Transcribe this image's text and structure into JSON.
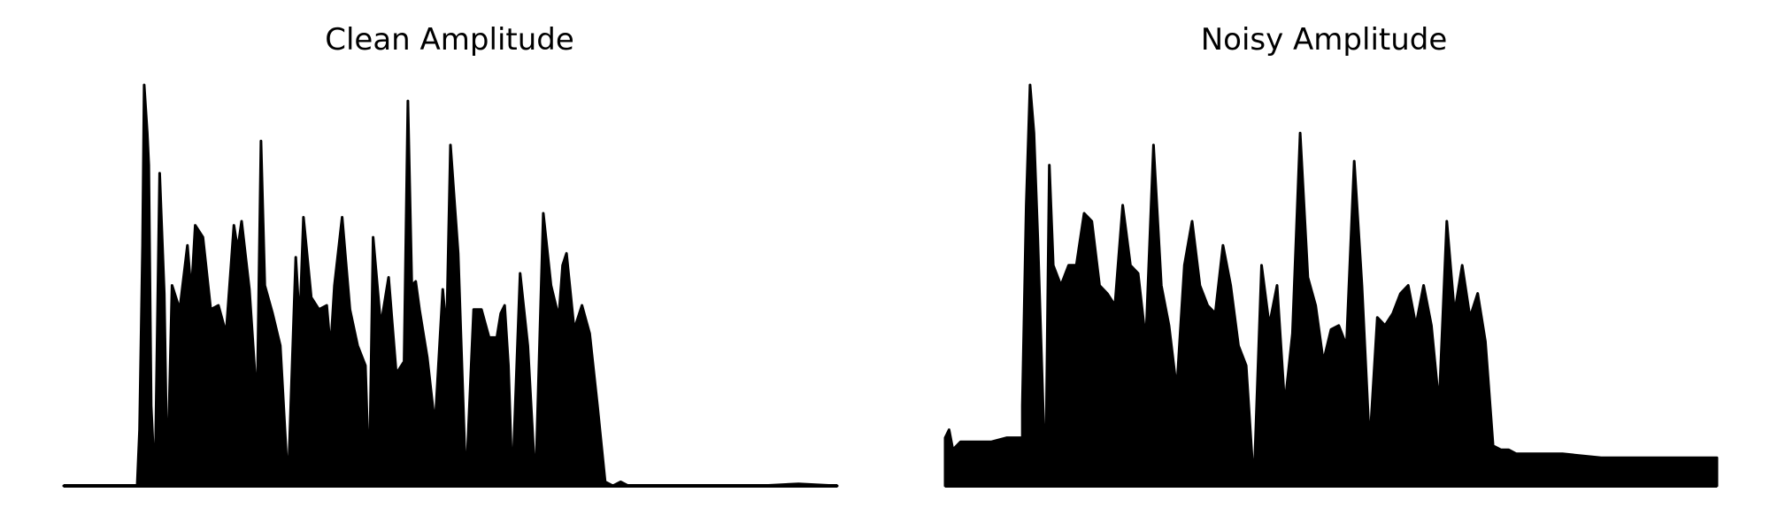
{
  "chart_data": [
    {
      "type": "area",
      "title": "Clean Amplitude",
      "xlabel": "",
      "ylabel": "",
      "ylim": [
        0,
        1
      ],
      "grid": false,
      "axes_visible": false,
      "legend": "none",
      "color": "#000000",
      "envelope": {
        "x": [
          0,
          0.095,
          0.098,
          0.102,
          0.104,
          0.108,
          0.11,
          0.113,
          0.118,
          0.124,
          0.13,
          0.134,
          0.14,
          0.15,
          0.16,
          0.165,
          0.17,
          0.18,
          0.19,
          0.2,
          0.21,
          0.22,
          0.225,
          0.23,
          0.24,
          0.25,
          0.255,
          0.26,
          0.27,
          0.28,
          0.29,
          0.3,
          0.305,
          0.31,
          0.32,
          0.33,
          0.34,
          0.345,
          0.35,
          0.36,
          0.37,
          0.38,
          0.39,
          0.395,
          0.4,
          0.41,
          0.42,
          0.43,
          0.44,
          0.445,
          0.45,
          0.455,
          0.46,
          0.47,
          0.48,
          0.49,
          0.495,
          0.5,
          0.51,
          0.52,
          0.53,
          0.54,
          0.55,
          0.56,
          0.565,
          0.57,
          0.575,
          0.58,
          0.59,
          0.6,
          0.61,
          0.62,
          0.63,
          0.64,
          0.645,
          0.65,
          0.66,
          0.67,
          0.68,
          0.69,
          0.7,
          0.71,
          0.72,
          0.73,
          0.74,
          0.75,
          0.76,
          0.77,
          0.78,
          0.79,
          0.8,
          0.81,
          0.82,
          0.83,
          0.84,
          0.85,
          0.86,
          0.87,
          0.88,
          0.89,
          0.9,
          0.95,
          1.0
        ],
        "y": [
          0,
          0,
          0.14,
          0.6,
          1.0,
          0.88,
          0.8,
          0.2,
          0.0,
          0.78,
          0.48,
          0.0,
          0.5,
          0.44,
          0.6,
          0.48,
          0.65,
          0.62,
          0.44,
          0.45,
          0.38,
          0.65,
          0.59,
          0.66,
          0.49,
          0.2,
          0.86,
          0.5,
          0.43,
          0.35,
          0.0,
          0.57,
          0.4,
          0.67,
          0.47,
          0.44,
          0.45,
          0.34,
          0.5,
          0.67,
          0.44,
          0.35,
          0.3,
          0.0,
          0.62,
          0.4,
          0.52,
          0.28,
          0.31,
          0.96,
          0.5,
          0.51,
          0.44,
          0.32,
          0.15,
          0.49,
          0.38,
          0.85,
          0.58,
          0.0,
          0.44,
          0.44,
          0.37,
          0.37,
          0.43,
          0.45,
          0.3,
          0.0,
          0.53,
          0.35,
          0.0,
          0.68,
          0.5,
          0.42,
          0.55,
          0.58,
          0.39,
          0.45,
          0.38,
          0.2,
          0.01,
          0.0,
          0.01,
          0.0,
          0.0,
          0.0,
          0.0,
          0.0,
          0.0,
          0.0,
          0.0,
          0.0,
          0.0,
          0.0,
          0.0,
          0.0,
          0.0,
          0.0,
          0.0,
          0.0,
          0.0,
          0.005,
          0.0
        ]
      }
    },
    {
      "type": "area",
      "title": "Noisy Amplitude",
      "xlabel": "",
      "ylabel": "",
      "ylim": [
        0,
        1
      ],
      "grid": false,
      "axes_visible": false,
      "legend": "none",
      "color": "#000000",
      "envelope": {
        "x": [
          0,
          0.005,
          0.01,
          0.02,
          0.04,
          0.06,
          0.08,
          0.1,
          0.1,
          0.105,
          0.11,
          0.115,
          0.12,
          0.13,
          0.135,
          0.14,
          0.15,
          0.16,
          0.17,
          0.18,
          0.19,
          0.2,
          0.21,
          0.22,
          0.23,
          0.24,
          0.25,
          0.26,
          0.27,
          0.28,
          0.29,
          0.3,
          0.31,
          0.32,
          0.33,
          0.34,
          0.35,
          0.36,
          0.37,
          0.38,
          0.39,
          0.4,
          0.41,
          0.42,
          0.43,
          0.44,
          0.45,
          0.46,
          0.47,
          0.48,
          0.49,
          0.5,
          0.51,
          0.52,
          0.53,
          0.54,
          0.55,
          0.56,
          0.57,
          0.58,
          0.59,
          0.6,
          0.61,
          0.62,
          0.63,
          0.64,
          0.65,
          0.66,
          0.67,
          0.68,
          0.69,
          0.7,
          0.71,
          0.72,
          0.73,
          0.74,
          0.75,
          0.76,
          0.77,
          0.78,
          0.79,
          0.8,
          0.85,
          0.9,
          0.95,
          1.0
        ],
        "y": [
          0.12,
          0.14,
          0.09,
          0.11,
          0.11,
          0.11,
          0.12,
          0.12,
          0.2,
          0.7,
          1.0,
          0.88,
          0.62,
          0.0,
          0.8,
          0.55,
          0.5,
          0.55,
          0.55,
          0.68,
          0.66,
          0.5,
          0.48,
          0.45,
          0.7,
          0.55,
          0.53,
          0.36,
          0.85,
          0.5,
          0.4,
          0.24,
          0.55,
          0.66,
          0.5,
          0.45,
          0.43,
          0.6,
          0.5,
          0.35,
          0.3,
          0.0,
          0.55,
          0.4,
          0.5,
          0.2,
          0.38,
          0.88,
          0.52,
          0.45,
          0.31,
          0.39,
          0.4,
          0.35,
          0.81,
          0.5,
          0.1,
          0.42,
          0.4,
          0.43,
          0.48,
          0.5,
          0.4,
          0.5,
          0.4,
          0.2,
          0.66,
          0.43,
          0.55,
          0.42,
          0.48,
          0.36,
          0.1,
          0.09,
          0.09,
          0.08,
          0.08,
          0.08,
          0.08,
          0.08,
          0.08,
          0.08,
          0.07,
          0.07,
          0.07,
          0.07
        ]
      }
    }
  ]
}
